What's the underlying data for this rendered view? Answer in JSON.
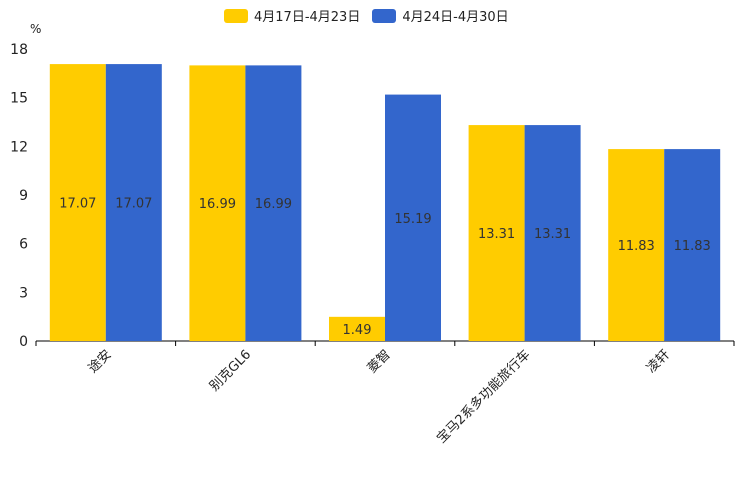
{
  "chart_data": {
    "type": "bar",
    "title": "",
    "ylabel": "%",
    "xlabel": "",
    "ylim": [
      0,
      18
    ],
    "yticks": [
      0,
      3,
      6,
      9,
      12,
      15,
      18
    ],
    "categories": [
      "途安",
      "别克GL6",
      "菱智",
      "宝马2系多功能旅行车",
      "凌轩"
    ],
    "series": [
      {
        "name": "4月17日-4月23日",
        "color": "#FFCC00",
        "values": [
          17.07,
          16.99,
          1.49,
          13.31,
          11.83
        ]
      },
      {
        "name": "4月24日-4月30日",
        "color": "#3366CC",
        "values": [
          17.07,
          16.99,
          15.19,
          13.31,
          11.83
        ]
      }
    ],
    "legend_position": "top-center"
  }
}
